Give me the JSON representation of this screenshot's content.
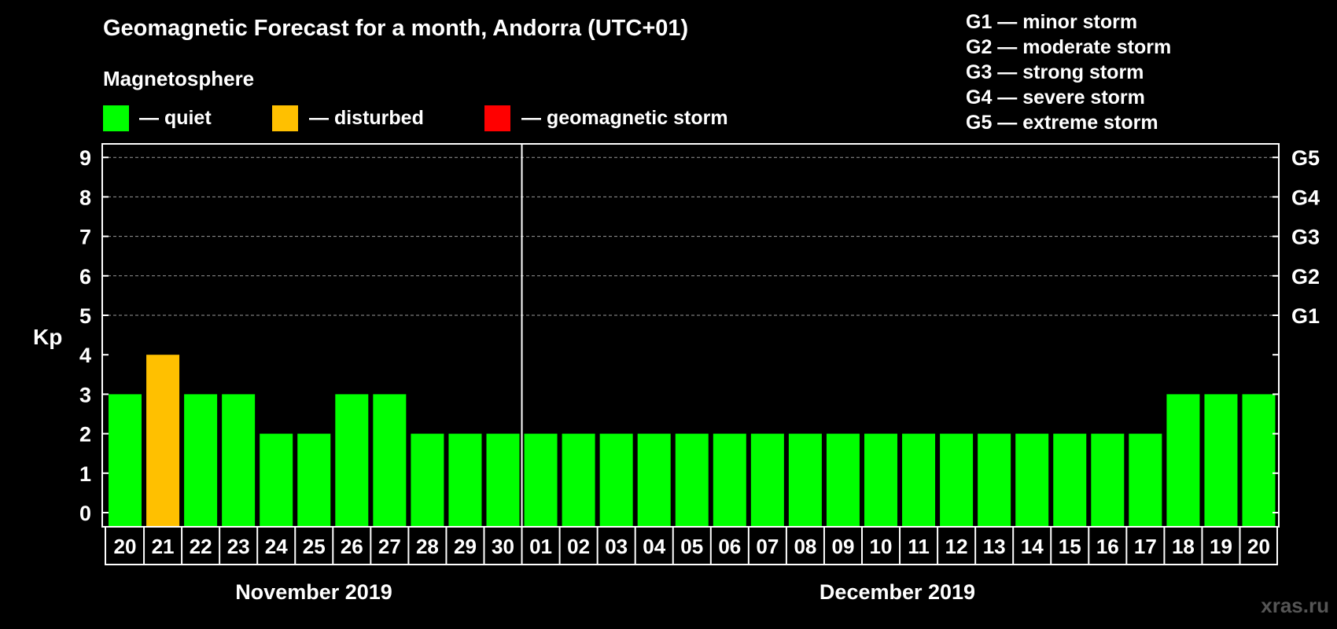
{
  "title": "Geomagnetic Forecast for a month, Andorra (UTC+01)",
  "legend": {
    "title": "Magnetosphere",
    "items": [
      {
        "label": "— quiet",
        "color": "#00ff00"
      },
      {
        "label": "— disturbed",
        "color": "#ffc000"
      },
      {
        "label": "— geomagnetic storm",
        "color": "#ff0000"
      }
    ]
  },
  "storm_scale": [
    "G1 — minor storm",
    "G2 — moderate storm",
    "G3 — strong storm",
    "G4 — severe storm",
    "G5 — extreme storm"
  ],
  "months": [
    "November 2019",
    "December 2019"
  ],
  "watermark": "xras.ru",
  "chart_data": {
    "type": "bar",
    "ylabel": "Kp",
    "ylim": [
      0,
      9
    ],
    "yticks": [
      0,
      1,
      2,
      3,
      4,
      5,
      6,
      7,
      8,
      9
    ],
    "right_ticks": [
      {
        "kp": 5,
        "label": "G1"
      },
      {
        "kp": 6,
        "label": "G2"
      },
      {
        "kp": 7,
        "label": "G3"
      },
      {
        "kp": 8,
        "label": "G4"
      },
      {
        "kp": 9,
        "label": "G5"
      }
    ],
    "categories": [
      "20",
      "21",
      "22",
      "23",
      "24",
      "25",
      "26",
      "27",
      "28",
      "29",
      "30",
      "01",
      "02",
      "03",
      "04",
      "05",
      "06",
      "07",
      "08",
      "09",
      "10",
      "11",
      "12",
      "13",
      "14",
      "15",
      "16",
      "17",
      "18",
      "19",
      "20"
    ],
    "values": [
      3,
      4,
      3,
      3,
      2,
      2,
      3,
      3,
      2,
      2,
      2,
      2,
      2,
      2,
      2,
      2,
      2,
      2,
      2,
      2,
      2,
      2,
      2,
      2,
      2,
      2,
      2,
      2,
      3,
      3,
      3
    ],
    "colors": {
      "quiet": "#00ff00",
      "disturbed": "#ffc000",
      "storm": "#ff0000"
    },
    "grid": true,
    "legend": "top"
  }
}
